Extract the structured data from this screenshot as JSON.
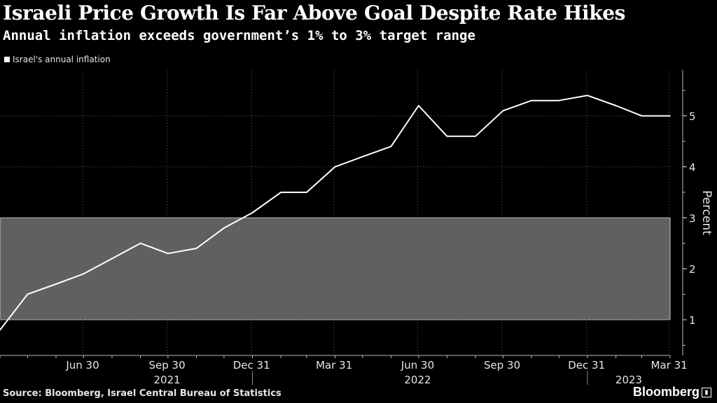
{
  "chart_data": {
    "type": "line",
    "title": "Israeli Price Growth Is Far Above Goal Despite Rate Hikes",
    "subtitle": "Annual inflation exceeds government’s 1% to 3% target range",
    "ylabel": "Percent",
    "ylim": [
      0.3,
      5.9
    ],
    "yticks": [
      1,
      2,
      3,
      4,
      5
    ],
    "grid": true,
    "legend_position": "top-left",
    "colors": {
      "line": "#ffffff",
      "band": "#808080",
      "background": "#000000"
    },
    "target_band": {
      "low": 1,
      "high": 3
    },
    "series": [
      {
        "name": "Israel's annual inflation",
        "points": [
          [
            "2021-04",
            0.8
          ],
          [
            "2021-05",
            1.5
          ],
          [
            "2021-06",
            1.7
          ],
          [
            "2021-07",
            1.9
          ],
          [
            "2021-08",
            2.2
          ],
          [
            "2021-09",
            2.5
          ],
          [
            "2021-10",
            2.3
          ],
          [
            "2021-11",
            2.4
          ],
          [
            "2021-12",
            2.8
          ],
          [
            "2022-01",
            3.1
          ],
          [
            "2022-02",
            3.5
          ],
          [
            "2022-03",
            3.5
          ],
          [
            "2022-04",
            4.0
          ],
          [
            "2022-05",
            4.2
          ],
          [
            "2022-06",
            4.4
          ],
          [
            "2022-07",
            5.2
          ],
          [
            "2022-08",
            4.6
          ],
          [
            "2022-09",
            4.6
          ],
          [
            "2022-10",
            5.1
          ],
          [
            "2022-11",
            5.3
          ],
          [
            "2022-12",
            5.3
          ],
          [
            "2023-01",
            5.4
          ],
          [
            "2023-02",
            5.2
          ],
          [
            "2023-03",
            5.0
          ],
          [
            "2023-04",
            5.0
          ]
        ]
      }
    ],
    "x_tick_labels": [
      {
        "label": "Jun 30",
        "date": "2021-06-30"
      },
      {
        "label": "Sep 30",
        "date": "2021-09-30"
      },
      {
        "label": "Dec 31",
        "date": "2021-12-31"
      },
      {
        "label": "Mar 31",
        "date": "2022-03-31"
      },
      {
        "label": "Jun 30",
        "date": "2022-06-30"
      },
      {
        "label": "Sep 30",
        "date": "2022-09-30"
      },
      {
        "label": "Dec 31",
        "date": "2022-12-31"
      },
      {
        "label": "Mar 31",
        "date": "2023-03-31"
      }
    ],
    "year_labels": [
      {
        "label": "2021",
        "date": "2021-09-30"
      },
      {
        "label": "2022",
        "date": "2022-06-30"
      },
      {
        "label": "2023",
        "date": "2023-02-15"
      }
    ],
    "year_dividers": [
      "2022-01-01",
      "2023-01-01"
    ]
  },
  "footer": {
    "source": "Source: Bloomberg, Israel Central Bureau of Statistics",
    "brand": "Bloomberg"
  }
}
